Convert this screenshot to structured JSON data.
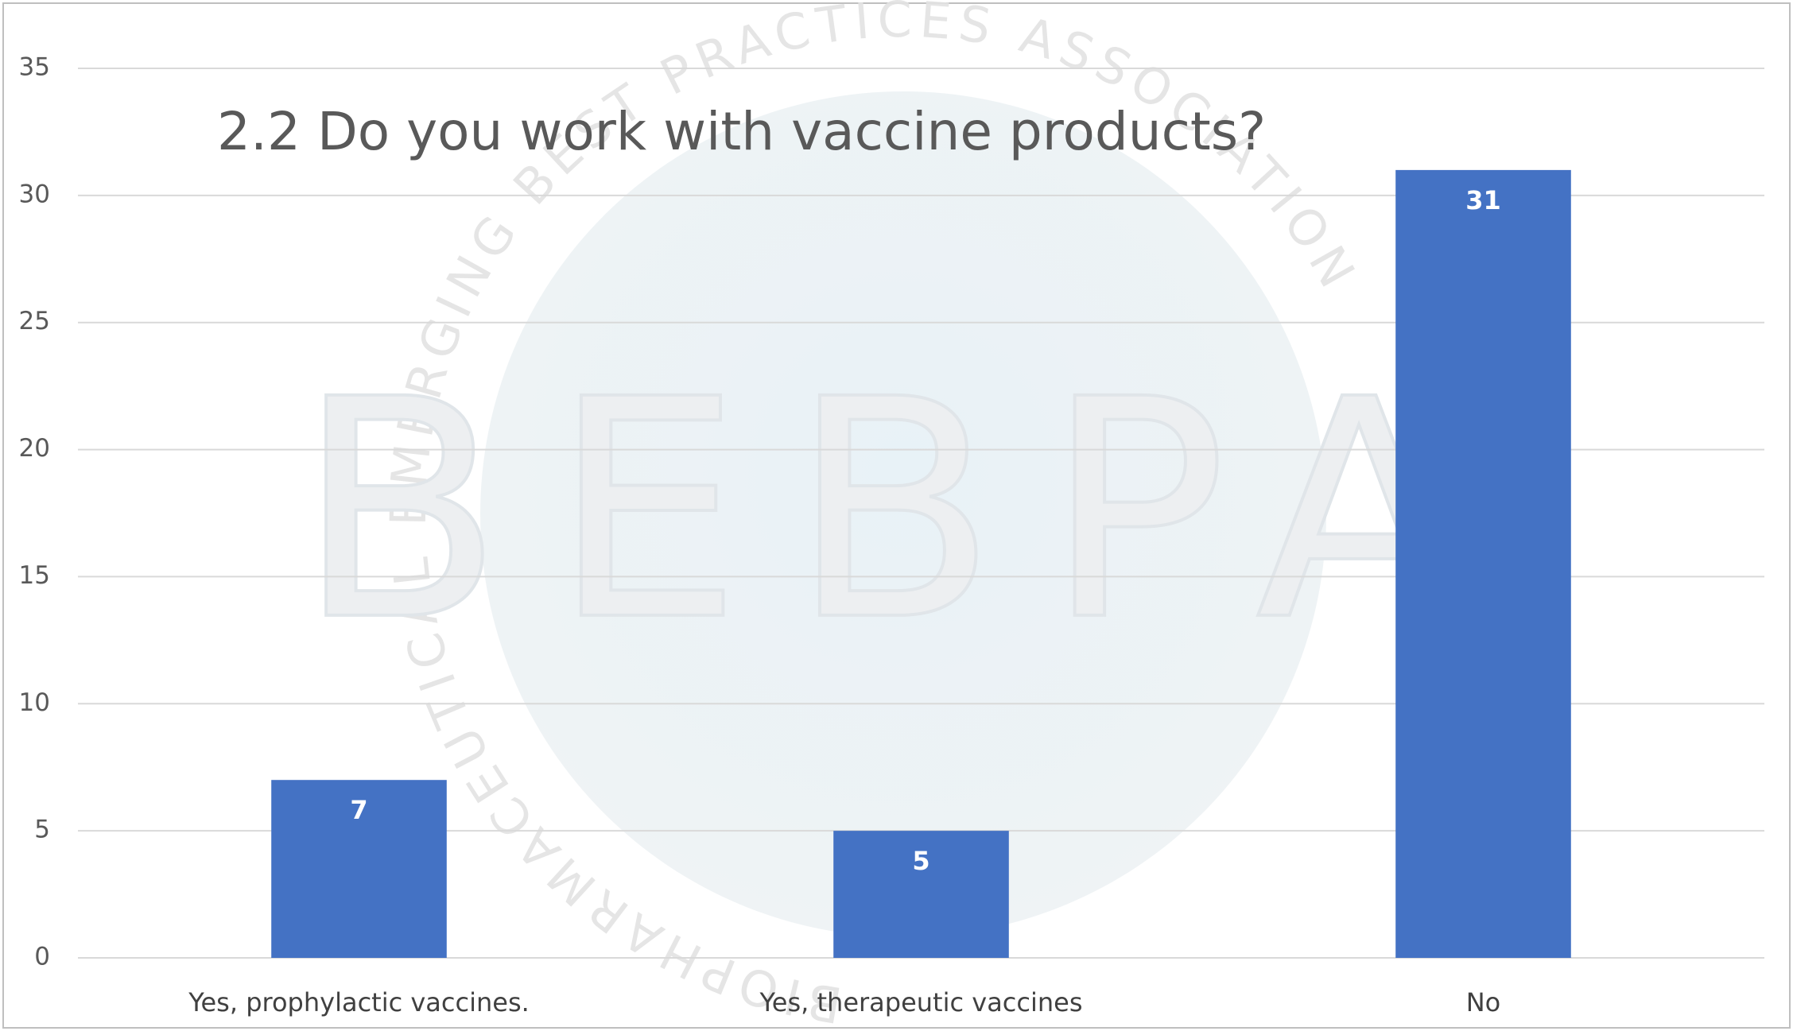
{
  "chart_data": {
    "type": "bar",
    "title": "2.2 Do you work with vaccine products?",
    "categories": [
      "Yes, prophylactic vaccines.",
      "Yes, therapeutic vaccines",
      "No"
    ],
    "values": [
      7,
      5,
      31
    ],
    "color": "#4472c4",
    "ylim": [
      0,
      35
    ],
    "yticks": [
      0,
      5,
      10,
      15,
      20,
      25,
      30,
      35
    ],
    "grid": true
  },
  "watermark": {
    "logo": "BEBPA",
    "ring": "BIOPHARMACEUTICAL EMERGING BEST PRACTICES ASSOCIATION"
  }
}
